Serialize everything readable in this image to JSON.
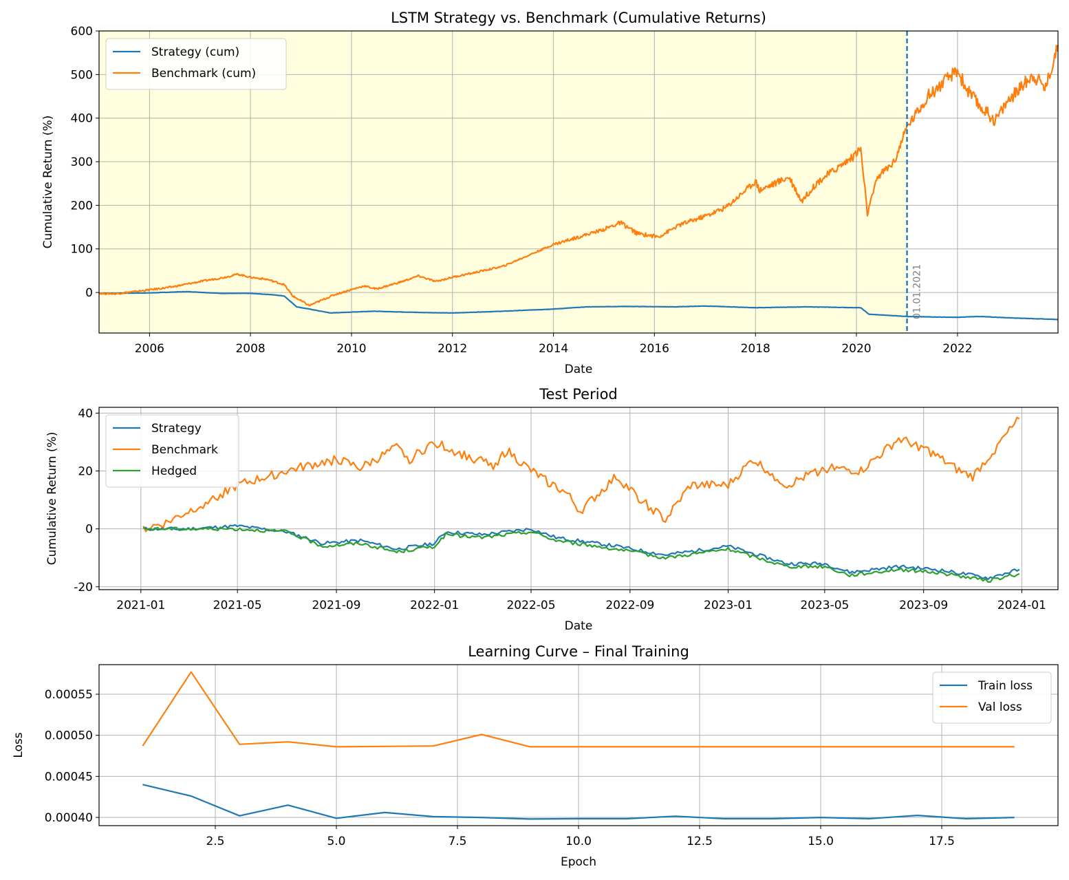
{
  "colors": {
    "strategy": "#1f77b4",
    "benchmark": "#ff7f0e",
    "hedged": "#2ca02c",
    "grid": "#b0b0b0",
    "train_shade": "#ffffe0"
  },
  "chart_data": [
    {
      "type": "line",
      "title": "LSTM Strategy vs. Benchmark (Cumulative Returns)",
      "xlabel": "Date",
      "ylabel": "Cumulative Return (%)",
      "xlim": [
        "2005-01-01",
        "2023-12-29"
      ],
      "ylim": [
        -93,
        600
      ],
      "x_ticks": [
        "2006",
        "2008",
        "2010",
        "2012",
        "2014",
        "2016",
        "2018",
        "2020",
        "2022"
      ],
      "y_ticks": [
        0,
        100,
        200,
        300,
        400,
        500,
        600
      ],
      "grid": true,
      "legend": "upper left",
      "shaded_region": {
        "from": "2005-01-01",
        "to": "2021-01-01",
        "label": "training period"
      },
      "vline": {
        "x": "2021-01-01",
        "label": "01.01.2021",
        "style": "dashed"
      },
      "series": [
        {
          "name": "Strategy (cum)",
          "color": "#1f77b4",
          "points": [
            [
              "2005-01-01",
              -2
            ],
            [
              "2006-01-01",
              -1
            ],
            [
              "2006-10-01",
              2
            ],
            [
              "2007-06-01",
              -2
            ],
            [
              "2008-01-01",
              -2
            ],
            [
              "2008-06-01",
              -5
            ],
            [
              "2008-09-01",
              -8
            ],
            [
              "2008-12-01",
              -33
            ],
            [
              "2009-03-01",
              -38
            ],
            [
              "2009-08-01",
              -47
            ],
            [
              "2010-06-01",
              -43
            ],
            [
              "2011-06-01",
              -46
            ],
            [
              "2012-01-01",
              -47
            ],
            [
              "2013-01-01",
              -43
            ],
            [
              "2014-01-01",
              -38
            ],
            [
              "2014-09-01",
              -33
            ],
            [
              "2015-06-01",
              -32
            ],
            [
              "2016-06-01",
              -33
            ],
            [
              "2017-01-01",
              -31
            ],
            [
              "2018-01-01",
              -35
            ],
            [
              "2019-01-01",
              -33
            ],
            [
              "2020-02-01",
              -35
            ],
            [
              "2020-04-01",
              -50
            ],
            [
              "2021-01-01",
              -55
            ],
            [
              "2021-06-01",
              -56
            ],
            [
              "2022-01-01",
              -57
            ],
            [
              "2022-06-01",
              -55
            ],
            [
              "2023-01-01",
              -58
            ],
            [
              "2023-12-29",
              -62
            ]
          ]
        },
        {
          "name": "Benchmark (cum)",
          "color": "#ff7f0e",
          "points": [
            [
              "2005-01-01",
              -2
            ],
            [
              "2005-05-01",
              -3
            ],
            [
              "2006-01-01",
              6
            ],
            [
              "2006-06-01",
              12
            ],
            [
              "2007-01-01",
              25
            ],
            [
              "2007-07-01",
              35
            ],
            [
              "2007-10-01",
              42
            ],
            [
              "2008-01-01",
              35
            ],
            [
              "2008-05-01",
              30
            ],
            [
              "2008-09-01",
              18
            ],
            [
              "2008-11-01",
              -8
            ],
            [
              "2009-03-01",
              -30
            ],
            [
              "2009-09-01",
              -5
            ],
            [
              "2010-04-01",
              15
            ],
            [
              "2010-07-01",
              8
            ],
            [
              "2011-01-01",
              25
            ],
            [
              "2011-05-01",
              38
            ],
            [
              "2011-09-01",
              25
            ],
            [
              "2012-01-01",
              35
            ],
            [
              "2012-06-01",
              45
            ],
            [
              "2013-01-01",
              60
            ],
            [
              "2014-01-01",
              110
            ],
            [
              "2015-01-01",
              145
            ],
            [
              "2015-05-01",
              160
            ],
            [
              "2015-09-01",
              135
            ],
            [
              "2016-02-01",
              128
            ],
            [
              "2016-07-01",
              155
            ],
            [
              "2017-01-01",
              175
            ],
            [
              "2017-06-01",
              195
            ],
            [
              "2018-01-01",
              255
            ],
            [
              "2018-02-01",
              235
            ],
            [
              "2018-09-01",
              265
            ],
            [
              "2018-12-01",
              210
            ],
            [
              "2019-04-01",
              255
            ],
            [
              "2019-12-01",
              310
            ],
            [
              "2020-02-01",
              330
            ],
            [
              "2020-03-20",
              180
            ],
            [
              "2020-06-01",
              265
            ],
            [
              "2020-10-01",
              300
            ],
            [
              "2021-01-01",
              380
            ],
            [
              "2021-06-01",
              450
            ],
            [
              "2022-01-01",
              510
            ],
            [
              "2022-03-01",
              470
            ],
            [
              "2022-06-01",
              430
            ],
            [
              "2022-10-01",
              395
            ],
            [
              "2023-01-01",
              440
            ],
            [
              "2023-07-01",
              500
            ],
            [
              "2023-10-01",
              470
            ],
            [
              "2023-12-29",
              568
            ]
          ]
        }
      ]
    },
    {
      "type": "line",
      "title": "Test Period",
      "xlabel": "Date",
      "ylabel": "Cumulative Return (%)",
      "xlim": [
        "2020-11-10",
        "2024-02-15"
      ],
      "ylim": [
        -21,
        42
      ],
      "x_ticks": [
        "2021-01",
        "2021-05",
        "2021-09",
        "2022-01",
        "2022-05",
        "2022-09",
        "2023-01",
        "2023-05",
        "2023-09",
        "2024-01"
      ],
      "y_ticks": [
        -20,
        0,
        20,
        40
      ],
      "grid": true,
      "legend": "upper left",
      "series": [
        {
          "name": "Strategy",
          "color": "#1f77b4",
          "points": [
            [
              "2021-01-04",
              0
            ],
            [
              "2021-03-01",
              0
            ],
            [
              "2021-05-01",
              1
            ],
            [
              "2021-07-01",
              -1
            ],
            [
              "2021-08-15",
              -5
            ],
            [
              "2021-10-01",
              -4
            ],
            [
              "2021-11-15",
              -7
            ],
            [
              "2022-01-01",
              -5
            ],
            [
              "2022-01-15",
              -1
            ],
            [
              "2022-03-01",
              -2
            ],
            [
              "2022-05-01",
              0
            ],
            [
              "2022-06-01",
              -3
            ],
            [
              "2022-08-15",
              -6
            ],
            [
              "2022-10-15",
              -9
            ],
            [
              "2023-01-01",
              -6
            ],
            [
              "2023-03-15",
              -12
            ],
            [
              "2023-05-01",
              -12
            ],
            [
              "2023-06-01",
              -15
            ],
            [
              "2023-08-01",
              -13
            ],
            [
              "2023-09-15",
              -14
            ],
            [
              "2023-11-01",
              -16
            ],
            [
              "2023-11-20",
              -17
            ],
            [
              "2023-12-29",
              -14
            ]
          ]
        },
        {
          "name": "Benchmark",
          "color": "#ff7f0e",
          "points": [
            [
              "2021-01-04",
              0
            ],
            [
              "2021-02-01",
              2
            ],
            [
              "2021-03-01",
              6
            ],
            [
              "2021-05-01",
              15
            ],
            [
              "2021-07-01",
              20
            ],
            [
              "2021-09-01",
              24
            ],
            [
              "2021-10-01",
              21
            ],
            [
              "2021-11-15",
              28
            ],
            [
              "2021-12-01",
              24
            ],
            [
              "2022-01-01",
              30
            ],
            [
              "2022-02-01",
              26
            ],
            [
              "2022-03-15",
              22
            ],
            [
              "2022-04-01",
              27
            ],
            [
              "2022-05-01",
              20
            ],
            [
              "2022-06-15",
              12
            ],
            [
              "2022-07-01",
              6
            ],
            [
              "2022-08-15",
              18
            ],
            [
              "2022-09-15",
              10
            ],
            [
              "2022-10-15",
              3
            ],
            [
              "2022-11-15",
              15
            ],
            [
              "2023-01-01",
              15
            ],
            [
              "2023-02-01",
              24
            ],
            [
              "2023-03-15",
              15
            ],
            [
              "2023-05-01",
              21
            ],
            [
              "2023-06-15",
              20
            ],
            [
              "2023-08-01",
              31
            ],
            [
              "2023-09-01",
              28
            ],
            [
              "2023-10-15",
              20
            ],
            [
              "2023-11-01",
              18
            ],
            [
              "2023-12-29",
              38
            ]
          ]
        },
        {
          "name": "Hedged",
          "color": "#2ca02c",
          "points": [
            [
              "2021-01-04",
              0
            ],
            [
              "2021-03-01",
              0
            ],
            [
              "2021-05-01",
              0
            ],
            [
              "2021-07-01",
              -1
            ],
            [
              "2021-08-15",
              -6
            ],
            [
              "2021-10-01",
              -5
            ],
            [
              "2021-11-15",
              -8
            ],
            [
              "2022-01-01",
              -6
            ],
            [
              "2022-01-15",
              -2
            ],
            [
              "2022-03-01",
              -3
            ],
            [
              "2022-05-01",
              -1
            ],
            [
              "2022-06-01",
              -4
            ],
            [
              "2022-08-15",
              -7
            ],
            [
              "2022-10-15",
              -10
            ],
            [
              "2023-01-01",
              -7
            ],
            [
              "2023-03-15",
              -13
            ],
            [
              "2023-05-01",
              -13
            ],
            [
              "2023-06-01",
              -16
            ],
            [
              "2023-08-01",
              -14
            ],
            [
              "2023-09-15",
              -15
            ],
            [
              "2023-11-01",
              -17
            ],
            [
              "2023-11-20",
              -18
            ],
            [
              "2023-12-29",
              -15.5
            ]
          ]
        }
      ]
    },
    {
      "type": "line",
      "title": "Learning Curve – Final Training",
      "xlabel": "Epoch",
      "ylabel": "Loss",
      "xlim": [
        0.1,
        19.9
      ],
      "ylim": [
        0.00039,
        0.000586
      ],
      "x_ticks": [
        "2.5",
        "5.0",
        "7.5",
        "10.0",
        "12.5",
        "15.0",
        "17.5"
      ],
      "y_ticks": [
        "0.00040",
        "0.00045",
        "0.00050",
        "0.00055"
      ],
      "grid": true,
      "legend": "upper right",
      "x": [
        1,
        2,
        3,
        4,
        5,
        6,
        7,
        8,
        9,
        10,
        11,
        12,
        13,
        14,
        15,
        16,
        17,
        18,
        19
      ],
      "series": [
        {
          "name": "Train loss",
          "color": "#1f77b4",
          "values": [
            0.00044,
            0.000426,
            0.000402,
            0.000415,
            0.000399,
            0.000406,
            0.000401,
            0.0004,
            0.000398,
            0.0003985,
            0.0003985,
            0.0004015,
            0.0003985,
            0.0003985,
            0.0004,
            0.0003985,
            0.0004025,
            0.0003985,
            0.0004
          ]
        },
        {
          "name": "Val loss",
          "color": "#ff7f0e",
          "values": [
            0.000487,
            0.000577,
            0.000489,
            0.000492,
            0.000486,
            0.0004865,
            0.000487,
            0.000501,
            0.000486,
            0.000486,
            0.000486,
            0.000486,
            0.000486,
            0.000486,
            0.000486,
            0.000486,
            0.000486,
            0.000486,
            0.000486
          ]
        }
      ]
    }
  ]
}
